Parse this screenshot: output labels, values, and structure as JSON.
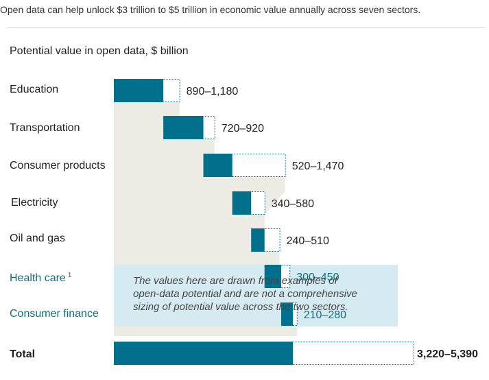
{
  "headline": "Open data can help unlock $3 trillion to $5 trillion in economic value annually across seven sectors.",
  "chart_data": {
    "type": "bar",
    "subtitle": "Potential value in open data, $ billion",
    "colors": {
      "low": "#01708d",
      "upper": "#ffffff",
      "cascade": "#ecebe4",
      "highlight_box": "#d5ebf1",
      "highlight_text": "#0f6e85"
    },
    "categories": [
      "Education",
      "Transportation",
      "Consumer products",
      "Electricity",
      "Oil and gas",
      "Health care",
      "Consumer finance"
    ],
    "footnote_marks": [
      "",
      "",
      "",
      "",
      "",
      "1",
      ""
    ],
    "highlighted": [
      false,
      false,
      false,
      false,
      false,
      true,
      true
    ],
    "low": [
      890,
      720,
      520,
      340,
      240,
      300,
      210
    ],
    "high": [
      1180,
      920,
      1470,
      580,
      510,
      450,
      280
    ],
    "labels": [
      "890–1,180",
      "720–920",
      "520–1,470",
      "340–580",
      "240–510",
      "300–450",
      "210–280"
    ],
    "total": {
      "label": "Total",
      "low": 3220,
      "high": 5390,
      "value_label": "3,220–5,390"
    },
    "note": "The values here are drawn from examples of open-data potential and are not a comprehensive sizing of potential value across the two sectors."
  }
}
